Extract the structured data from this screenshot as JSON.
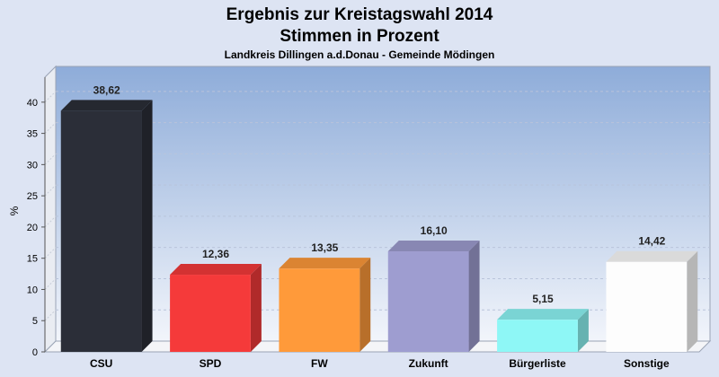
{
  "chart_data": {
    "type": "bar",
    "title": "Ergebnis zur Kreistagswahl 2014",
    "title_line2": "Stimmen in Prozent",
    "subtitle": "Landkreis Dillingen a.d.Donau - Gemeinde Mödingen",
    "ylabel": "%",
    "xlabel": "",
    "ylim": [
      0,
      44
    ],
    "yticks": [
      0,
      5,
      10,
      15,
      20,
      25,
      30,
      35,
      40
    ],
    "ytick_labels": [
      "0",
      "5",
      "10",
      "15",
      "20",
      "25",
      "30",
      "35",
      "40"
    ],
    "grid": true,
    "legend": "none",
    "categories": [
      "CSU",
      "SPD",
      "FW",
      "Zukunft",
      "Bürgerliste",
      "Sonstige"
    ],
    "values": [
      38.62,
      12.36,
      13.35,
      16.1,
      5.15,
      14.42
    ],
    "value_labels": [
      "38,62",
      "12,36",
      "13,35",
      "16,10",
      "5,15",
      "14,42"
    ],
    "colors": [
      "#2b2e38",
      "#f53a3a",
      "#ff9a3a",
      "#9e9dd0",
      "#8ef7f6",
      "#fdfdfd"
    ],
    "background_color": "#dde4f3",
    "plot_gradient_top": "#8eacd9",
    "plot_gradient_bottom": "#f2f5fb"
  }
}
